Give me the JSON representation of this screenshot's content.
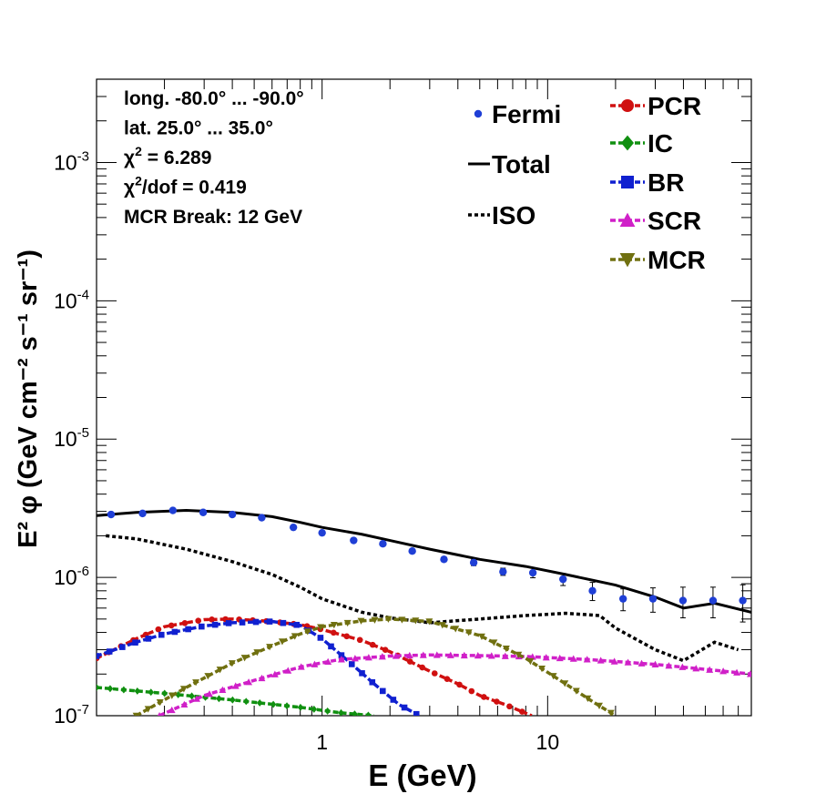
{
  "chart_data": {
    "type": "line",
    "xlabel": "E (GeV)",
    "ylabel": "E² φ (GeV cm⁻² s⁻¹ sr⁻¹)",
    "xscale": "log",
    "yscale": "log",
    "xlim": [
      0.1,
      80
    ],
    "ylim": [
      1e-07,
      0.004
    ],
    "xticks": [
      1,
      10
    ],
    "xtick_labels": [
      "1",
      "10"
    ],
    "yticks": [
      1e-07,
      1e-06,
      1e-05,
      0.0001,
      0.001
    ],
    "ytick_labels": [
      {
        "base": "10",
        "exp": "-7"
      },
      {
        "base": "10",
        "exp": "-6"
      },
      {
        "base": "10",
        "exp": "-5"
      },
      {
        "base": "10",
        "exp": "-4"
      },
      {
        "base": "10",
        "exp": "-3"
      }
    ],
    "info_lines": [
      {
        "text": "long. -80.0° ... -90.0°"
      },
      {
        "text": "lat. 25.0° ... 35.0°"
      },
      {
        "pre": "χ",
        "sup": "2",
        "post": " = 6.289"
      },
      {
        "pre": "χ",
        "sup": "2",
        "post": "/dof = 0.419"
      },
      {
        "text": "MCR Break: 12 GeV"
      }
    ],
    "legend_left": [
      {
        "key": "fermi",
        "label": "Fermi"
      },
      {
        "key": "total",
        "label": "Total"
      },
      {
        "key": "iso",
        "label": "ISO"
      }
    ],
    "legend_right": [
      {
        "key": "pcr",
        "label": "PCR"
      },
      {
        "key": "ic",
        "label": "IC"
      },
      {
        "key": "br",
        "label": "BR"
      },
      {
        "key": "scr",
        "label": "SCR"
      },
      {
        "key": "mcr",
        "label": "MCR"
      }
    ],
    "fermi": {
      "color": "#1f3fd6",
      "x": [
        0.116,
        0.16,
        0.218,
        0.297,
        0.4,
        0.54,
        0.746,
        1.0,
        1.38,
        1.86,
        2.51,
        3.47,
        4.7,
        6.34,
        8.6,
        11.7,
        15.8,
        21.6,
        29.3,
        39.8,
        54.1,
        73.3
      ],
      "y": [
        2.85e-06,
        2.9e-06,
        3.05e-06,
        2.95e-06,
        2.85e-06,
        2.7e-06,
        2.3e-06,
        2.1e-06,
        1.85e-06,
        1.75e-06,
        1.55e-06,
        1.35e-06,
        1.28e-06,
        1.1e-06,
        1.08e-06,
        9.7e-07,
        8e-07,
        7e-07,
        7e-07,
        6.8e-07,
        6.8e-07,
        6.8e-07
      ],
      "err": [
        0.03,
        0.03,
        0.03,
        0.03,
        0.03,
        0.03,
        0.03,
        0.03,
        0.03,
        0.03,
        0.03,
        0.04,
        0.05,
        0.06,
        0.08,
        0.1,
        0.15,
        0.18,
        0.2,
        0.25,
        0.25,
        0.3
      ]
    },
    "series": [
      {
        "key": "total",
        "name": "Total",
        "color": "#000000",
        "dash": "none",
        "marker": "none",
        "x": [
          0.1,
          0.15,
          0.25,
          0.4,
          0.6,
          0.8,
          1.0,
          1.5,
          2.0,
          3.0,
          5.0,
          8.0,
          12.0,
          20.0,
          30.0,
          40.0,
          55.0,
          80.0
        ],
        "y": [
          2.8e-06,
          2.95e-06,
          3.05e-06,
          2.95e-06,
          2.75e-06,
          2.5e-06,
          2.3e-06,
          2.05e-06,
          1.85e-06,
          1.6e-06,
          1.35e-06,
          1.2e-06,
          1.05e-06,
          8.8e-07,
          7.2e-07,
          6e-07,
          6.5e-07,
          5.6e-07
        ]
      },
      {
        "key": "iso",
        "name": "ISO",
        "color": "#000000",
        "dash": "4,3",
        "marker": "none",
        "x": [
          0.11,
          0.15,
          0.25,
          0.4,
          0.6,
          0.8,
          1.0,
          1.5,
          2.0,
          3.0,
          5.0,
          8.0,
          12.0,
          17.0,
          20.0,
          30.0,
          40.0,
          55.0,
          70.0
        ],
        "y": [
          2e-06,
          1.9e-06,
          1.6e-06,
          1.3e-06,
          1.05e-06,
          8.5e-07,
          7e-07,
          5.6e-07,
          5.1e-07,
          4.7e-07,
          5e-07,
          5.3e-07,
          5.5e-07,
          5.3e-07,
          4.3e-07,
          3e-07,
          2.5e-07,
          3.4e-07,
          3e-07
        ]
      },
      {
        "key": "pcr",
        "name": "PCR",
        "color": "#d01010",
        "dash": "6,3",
        "marker": "circle",
        "x": [
          0.1,
          0.15,
          0.2,
          0.3,
          0.4,
          0.6,
          0.8,
          1.0,
          1.5,
          2.0,
          3.0,
          4.0,
          5.0,
          6.5,
          8.5
        ],
        "y": [
          2.6e-07,
          3.6e-07,
          4.4e-07,
          4.95e-07,
          5e-07,
          4.8e-07,
          4.55e-07,
          4.2e-07,
          3.5e-07,
          2.9e-07,
          2.1e-07,
          1.7e-07,
          1.4e-07,
          1.2e-07,
          1e-07
        ]
      },
      {
        "key": "ic",
        "name": "IC",
        "color": "#109010",
        "dash": "6,3",
        "marker": "diamond",
        "x": [
          0.1,
          0.2,
          0.4,
          0.8,
          1.2,
          1.7
        ],
        "y": [
          1.6e-07,
          1.45e-07,
          1.3e-07,
          1.15e-07,
          1.05e-07,
          1e-07
        ]
      },
      {
        "key": "br",
        "name": "BR",
        "color": "#1020d0",
        "dash": "6,3",
        "marker": "square",
        "x": [
          0.1,
          0.15,
          0.2,
          0.3,
          0.4,
          0.6,
          0.8,
          1.0,
          1.3,
          1.7,
          2.2,
          2.7
        ],
        "y": [
          2.7e-07,
          3.4e-07,
          3.9e-07,
          4.45e-07,
          4.7e-07,
          4.8e-07,
          4.5e-07,
          3.6e-07,
          2.5e-07,
          1.7e-07,
          1.2e-07,
          1e-07
        ]
      },
      {
        "key": "scr",
        "name": "SCR",
        "color": "#d020c8",
        "dash": "6,3",
        "marker": "triangle",
        "x": [
          0.19,
          0.3,
          0.5,
          0.8,
          1.2,
          2.0,
          3.0,
          5.0,
          8.0,
          15.0,
          30.0,
          60.0,
          80.0
        ],
        "y": [
          1e-07,
          1.4e-07,
          1.8e-07,
          2.25e-07,
          2.55e-07,
          2.7e-07,
          2.75e-07,
          2.72e-07,
          2.68e-07,
          2.55e-07,
          2.35e-07,
          2.1e-07,
          2e-07
        ]
      },
      {
        "key": "mcr",
        "name": "MCR",
        "color": "#707010",
        "dash": "6,3",
        "marker": "triangle-down",
        "x": [
          0.15,
          0.25,
          0.4,
          0.6,
          0.8,
          1.0,
          1.5,
          2.0,
          3.0,
          5.0,
          8.0,
          12.0,
          16.0,
          20.0
        ],
        "y": [
          1e-07,
          1.6e-07,
          2.4e-07,
          3.2e-07,
          3.9e-07,
          4.4e-07,
          4.85e-07,
          5e-07,
          4.8e-07,
          3.8e-07,
          2.6e-07,
          1.7e-07,
          1.25e-07,
          1e-07
        ]
      }
    ]
  }
}
